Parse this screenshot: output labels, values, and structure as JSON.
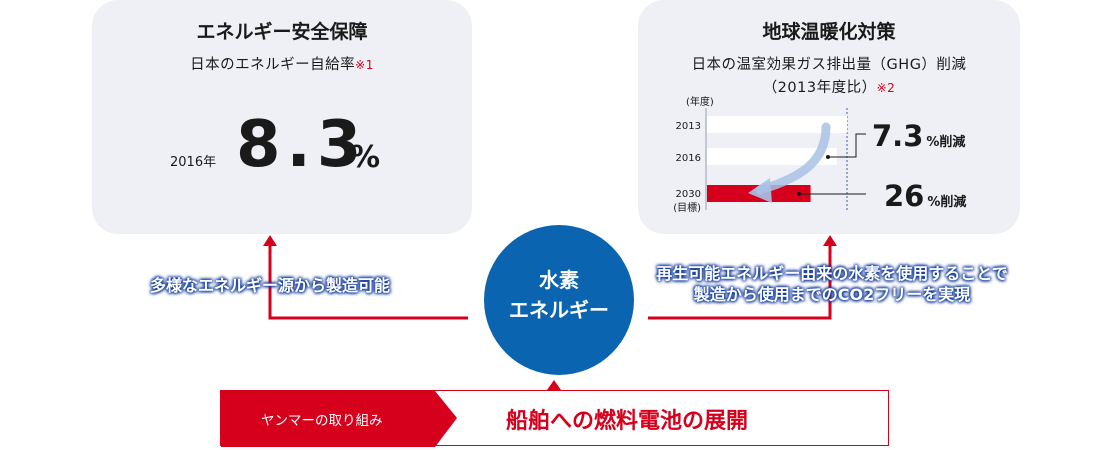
{
  "left_card": {
    "title": "エネルギー安全保障",
    "subtitle": "日本のエネルギー自給率",
    "note": "※1",
    "year": "2016年",
    "value": "8.3",
    "unit": "%"
  },
  "right_card": {
    "title": "地球温暖化対策",
    "subtitle_line1": "日本の温室効果ガス排出量（GHG）削減",
    "subtitle_line2": "（2013年度比）",
    "note": "※2",
    "axis_title": "(年度)",
    "callout_1_value": "7.3",
    "callout_1_unit": "%削減",
    "callout_2_value": "26",
    "callout_2_unit": "%削減"
  },
  "chart_data": {
    "type": "bar",
    "orientation": "horizontal",
    "categories": [
      "2013",
      "2016",
      "2030\n(目標)"
    ],
    "category_labels": [
      "2013",
      "2016",
      "2030"
    ],
    "target_label": "(目標)",
    "values": [
      100,
      92.7,
      74
    ],
    "reductions": [
      "",
      "7.3",
      "26"
    ],
    "xlim": [
      0,
      100
    ],
    "bar_colors": [
      "#ffffff",
      "#ffffff",
      "#d6001c"
    ]
  },
  "center": {
    "line1": "水素",
    "line2": "エネルギー"
  },
  "left_pill": {
    "text": "多様なエネルギー源から製造可能"
  },
  "right_pill": {
    "line1": "再生可能エネルギー由来の水素を使用することで",
    "line2": "製造から使用までのCO2フリーを実現"
  },
  "banner": {
    "tag": "ヤンマーの取り組み",
    "main": "船舶への燃料電池の展開"
  },
  "colors": {
    "accent_red": "#d6001c",
    "brand_blue": "#0b64b0",
    "card_bg": "#eef0f6"
  }
}
